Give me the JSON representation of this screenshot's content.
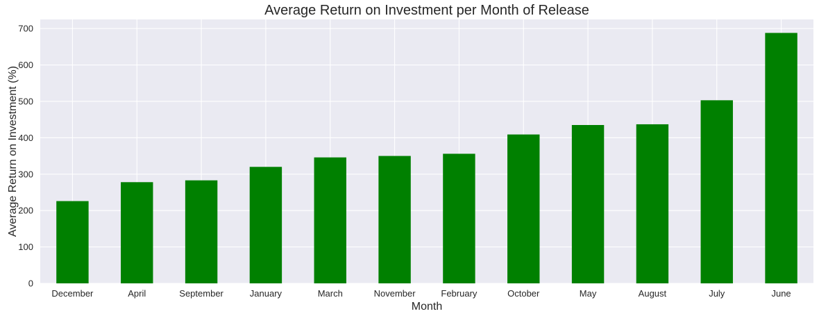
{
  "chart_data": {
    "type": "bar",
    "title": "Average Return on Investment per Month of Release",
    "xlabel": "Month",
    "ylabel": "Average Return on Investment (%)",
    "categories": [
      "December",
      "April",
      "September",
      "January",
      "March",
      "November",
      "February",
      "October",
      "May",
      "August",
      "July",
      "June"
    ],
    "values": [
      226,
      278,
      283,
      320,
      346,
      350,
      356,
      409,
      435,
      437,
      503,
      688
    ],
    "ylim": [
      0,
      725
    ],
    "yticks": [
      0,
      100,
      200,
      300,
      400,
      500,
      600,
      700
    ],
    "ytick_labels": [
      "0",
      "100",
      "200",
      "300",
      "400",
      "500",
      "600",
      "700"
    ],
    "grid": true,
    "legend": "none",
    "bar_color": "#008000",
    "plot_background": "#eaeaf2",
    "grid_color": "#ffffff",
    "text_color": "#262626"
  }
}
